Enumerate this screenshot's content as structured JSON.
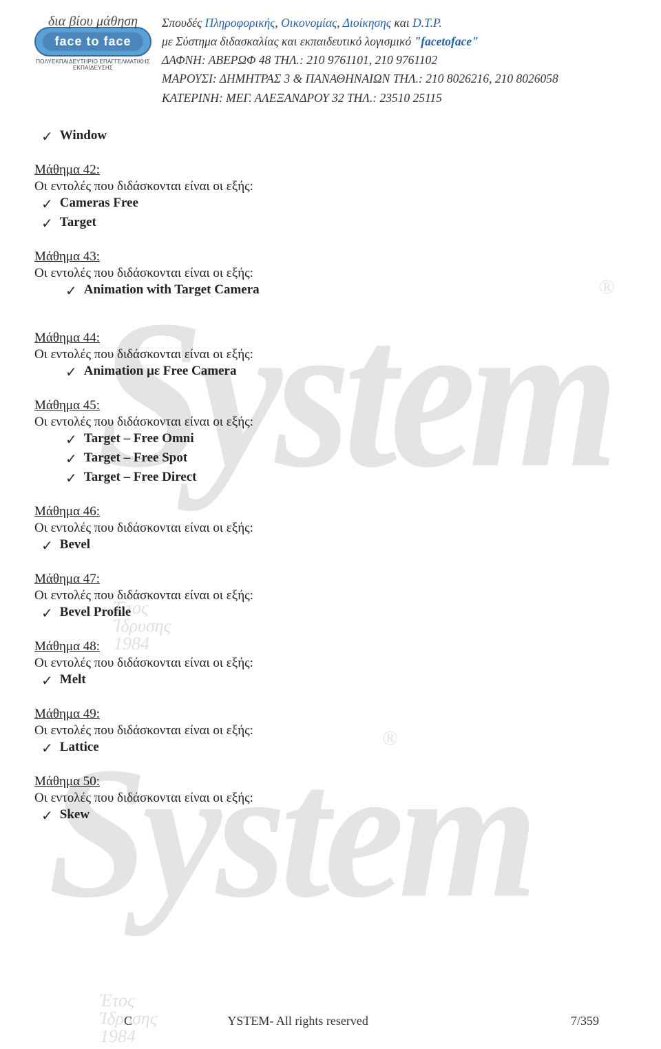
{
  "logo": {
    "tagline": "δια βίου μάθηση",
    "pill": "face   to   face",
    "sub": "ΠΟΛΥΕΚΠΑΙΔΕΥΤΗΡΙΟ ΕΠΑΓΓΕΛΜΑΤΙΚΗΣ ΕΚΠΑΙΔΕΥΣΗΣ"
  },
  "header": {
    "line1_a": "Σπουδές ",
    "line1_b": "Πληροφορικής",
    "line1_c": ", ",
    "line1_d": "Οικονομίας",
    "line1_e": ", ",
    "line1_f": "Διοίκησης",
    "line1_g": " και ",
    "line1_h": "D.T.P.",
    "line2_a": "με Σύστημα διδασκαλίας και εκπαιδευτικό λογισμικό ",
    "line2_b": "\"facetoface\"",
    "line3": "ΔΑΦΝΗ: ΑΒΕΡΩΦ 48 ΤΗΛ.: 210 9761101, 210 9761102",
    "line4": "ΜΑΡΟΥΣΙ: ΔΗΜΗΤΡΑΣ 3 & ΠΑΝΑΘΗΝΑΙΩΝ ΤΗΛ.: 210 8026216, 210 8026058",
    "line5": "ΚΑΤΕΡΙΝΗ: ΜΕΓ. ΑΛΕΞΑΝΔΡΟΥ 32 ΤΗΛ.: 23510 25115"
  },
  "intro_phrase": "Οι εντολές που διδάσκονται είναι οι εξής:",
  "top_item": "Window",
  "lessons": [
    {
      "title": "Μάθημα 42:",
      "items": [
        "Cameras Free",
        "Target"
      ],
      "indent": false
    },
    {
      "title": "Μάθημα 43:",
      "items": [
        "Animation with Target Camera"
      ],
      "indent": true
    },
    {
      "title": "Μάθημα 44:",
      "items": [
        "Animation με Free Camera"
      ],
      "indent": true
    },
    {
      "title": "Μάθημα 45:",
      "items": [
        "Target – Free Omni",
        "Target – Free Spot",
        "Target – Free Direct"
      ],
      "indent": true
    },
    {
      "title": "Μάθημα 46:",
      "items": [
        "Bevel"
      ],
      "indent": false
    },
    {
      "title": "Μάθημα 47:",
      "items": [
        "Bevel Profile"
      ],
      "indent": false
    },
    {
      "title": "Μάθημα 48:",
      "items": [
        "Melt"
      ],
      "indent": false
    },
    {
      "title": "Μάθημα 49:",
      "items": [
        "Lattice"
      ],
      "indent": false
    },
    {
      "title": "Μάθημα 50:",
      "items": [
        "Skew"
      ],
      "indent": false
    }
  ],
  "footer": {
    "left_a": "C",
    "left_b": "YSTEM- All rights reserved",
    "right": "7/359"
  },
  "watermark": {
    "text": "System",
    "reg": "®",
    "year_a": "Έτος",
    "year_b": "Ίδρυσης",
    "year_c": "1984"
  },
  "colors": {
    "link": "#2460a8",
    "text": "#333333",
    "watermark": "#e4e4e4"
  }
}
